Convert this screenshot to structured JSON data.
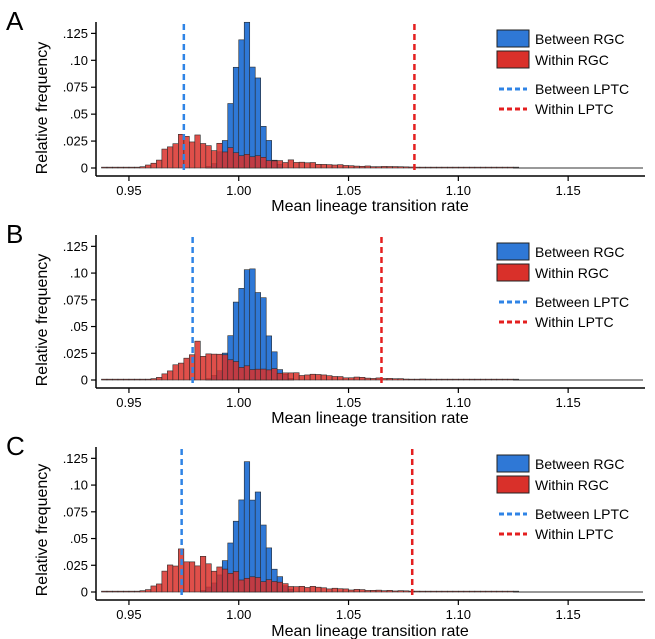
{
  "colors": {
    "between_rgc": "#2f78d6",
    "within_rgc": "#d9302a",
    "between_lptc": "#2f84e6",
    "within_lptc": "#e41f1f"
  },
  "legend": {
    "between_rgc": "Between RGC",
    "within_rgc": "Within RGC",
    "between_lptc": "Between LPTC",
    "within_lptc": "Within LPTC"
  },
  "ylabel": "Relative frequency",
  "xlabel": "Mean lineage transition rate",
  "chart_data": [
    {
      "panel": "A",
      "type": "bar",
      "xlim": [
        0.935,
        1.185
      ],
      "ylim": [
        0,
        0.13
      ],
      "xticks": [
        "0.95",
        "1.00",
        "1.05",
        "1.10",
        "1.15"
      ],
      "yticks": [
        "0",
        ".025",
        ".05",
        ".075",
        ".10",
        ".125"
      ],
      "between_lptc_x": 0.975,
      "within_lptc_x": 1.08,
      "series": [
        {
          "name": "Between RGC",
          "center": 1.002,
          "spread": 0.008,
          "peak": 0.125
        },
        {
          "name": "Within RGC",
          "peak_x": 0.975,
          "peak": 0.033
        }
      ]
    },
    {
      "panel": "B",
      "type": "bar",
      "xlim": [
        0.935,
        1.185
      ],
      "ylim": [
        0,
        0.13
      ],
      "xticks": [
        "0.95",
        "1.00",
        "1.05",
        "1.10",
        "1.15"
      ],
      "yticks": [
        "0",
        ".025",
        ".05",
        ".075",
        ".10",
        ".125"
      ],
      "between_lptc_x": 0.979,
      "within_lptc_x": 1.065,
      "series": [
        {
          "name": "Between RGC",
          "center": 1.004,
          "spread": 0.009,
          "peak": 0.112
        },
        {
          "name": "Within RGC",
          "peak_x": 0.98,
          "peak": 0.03
        }
      ]
    },
    {
      "panel": "C",
      "type": "bar",
      "xlim": [
        0.935,
        1.185
      ],
      "ylim": [
        0,
        0.13
      ],
      "xticks": [
        "0.95",
        "1.00",
        "1.05",
        "1.10",
        "1.15"
      ],
      "yticks": [
        "0",
        ".025",
        ".05",
        ".075",
        ".10",
        ".125"
      ],
      "between_lptc_x": 0.974,
      "within_lptc_x": 1.079,
      "series": [
        {
          "name": "Between RGC",
          "center": 1.003,
          "spread": 0.01,
          "peak": 0.107
        },
        {
          "name": "Within RGC",
          "peak_x": 0.975,
          "peak": 0.036
        }
      ]
    }
  ]
}
